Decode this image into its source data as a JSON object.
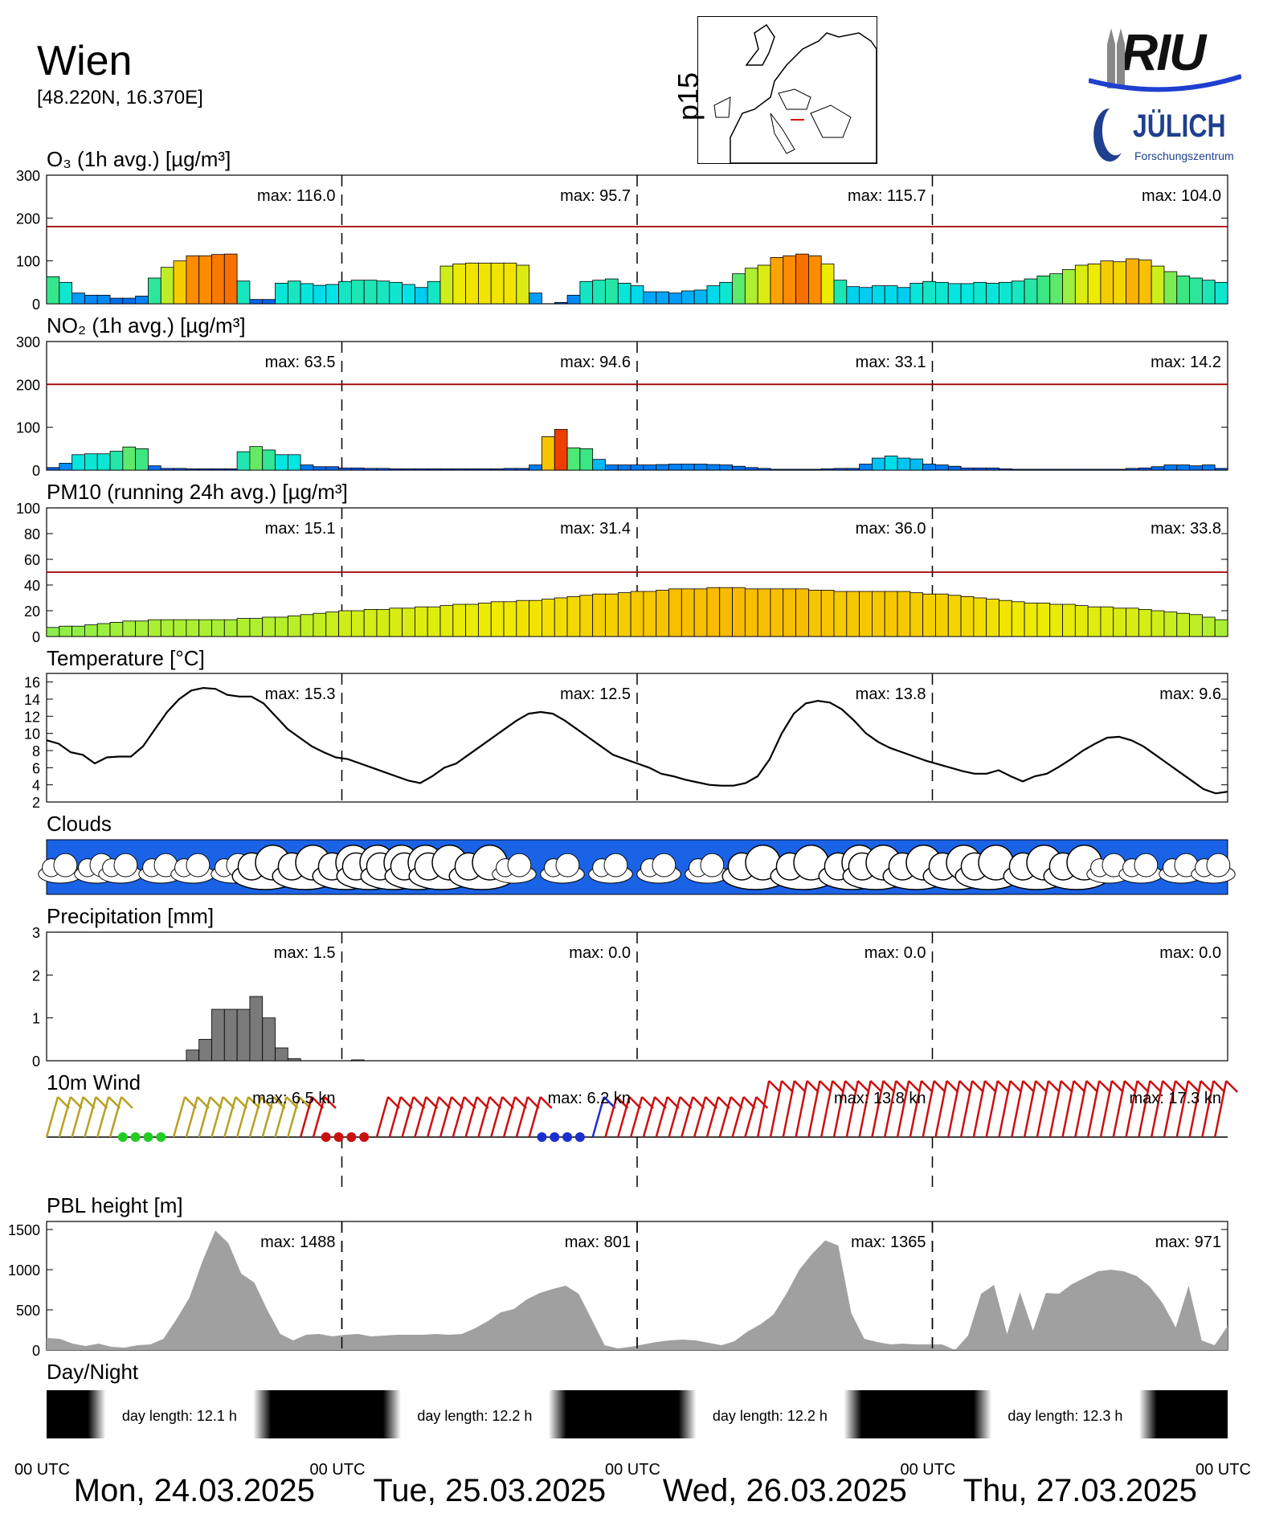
{
  "header": {
    "location": "Wien",
    "coords": "[48.220N, 16.370E]",
    "map_label": "p15",
    "logo_text_1": "RIU",
    "logo_text_2": "JÜLICH",
    "logo_text_3": "Forschungszentrum"
  },
  "panels": {
    "o3": "O₃ (1h avg.) [µg/m³]",
    "no2": "NO₂ (1h avg.) [µg/m³]",
    "pm10": "PM10 (running 24h avg.) [µg/m³]",
    "temp": "Temperature [°C]",
    "clouds": "Clouds",
    "precip": "Precipitation [mm]",
    "wind": "10m Wind",
    "pbl": "PBL height [m]",
    "daynight": "Day/Night"
  },
  "footer": {
    "utc": "00 UTC",
    "days": [
      "Mon, 24.03.2025",
      "Tue, 25.03.2025",
      "Wed, 26.03.2025",
      "Thu, 27.03.2025"
    ]
  },
  "chart_data": [
    {
      "type": "bar",
      "panel": "o3",
      "ylim": [
        0,
        300
      ],
      "yticks": [
        0,
        100,
        200,
        300
      ],
      "threshold": 180,
      "max_labels": [
        "max: 116.0",
        "max:  95.7",
        "max: 115.7",
        "max: 104.0"
      ],
      "values": [
        63,
        50,
        25,
        20,
        20,
        13,
        13,
        18,
        60,
        85,
        100,
        112,
        112,
        115,
        116,
        53,
        10,
        10,
        48,
        53,
        47,
        43,
        45,
        52,
        55,
        55,
        53,
        50,
        45,
        38,
        52,
        88,
        93,
        95,
        95,
        95,
        95,
        90,
        25,
        0,
        3,
        20,
        52,
        55,
        58,
        48,
        42,
        28,
        28,
        25,
        30,
        32,
        42,
        50,
        70,
        83,
        90,
        108,
        112,
        116,
        112,
        93,
        55,
        40,
        38,
        42,
        42,
        38,
        48,
        52,
        50,
        47,
        47,
        50,
        48,
        50,
        53,
        58,
        65,
        70,
        80,
        90,
        93,
        100,
        98,
        105,
        102,
        88,
        75,
        65,
        60,
        55,
        50
      ]
    },
    {
      "type": "bar",
      "panel": "no2",
      "ylim": [
        0,
        300
      ],
      "yticks": [
        0,
        100,
        200,
        300
      ],
      "threshold": 200,
      "max_labels": [
        "max:  63.5",
        "max:  94.6",
        "max:  33.1",
        "max:  14.2"
      ],
      "values": [
        6,
        16,
        36,
        38,
        38,
        44,
        54,
        50,
        10,
        4,
        4,
        3,
        3,
        3,
        3,
        43,
        55,
        47,
        36,
        36,
        12,
        8,
        8,
        5,
        5,
        4,
        4,
        3,
        3,
        3,
        3,
        3,
        3,
        3,
        3,
        3,
        4,
        4,
        12,
        78,
        95,
        52,
        50,
        25,
        12,
        12,
        12,
        12,
        13,
        14,
        14,
        14,
        13,
        12,
        9,
        6,
        4,
        2,
        2,
        2,
        2,
        3,
        4,
        4,
        14,
        28,
        33,
        28,
        26,
        14,
        12,
        9,
        5,
        5,
        5,
        3,
        2,
        2,
        2,
        2,
        2,
        2,
        2,
        2,
        2,
        4,
        5,
        8,
        12,
        12,
        10,
        12,
        4
      ]
    },
    {
      "type": "bar",
      "panel": "pm10",
      "ylim": [
        0,
        100
      ],
      "yticks": [
        0,
        20,
        40,
        60,
        80,
        100
      ],
      "threshold": 50,
      "max_labels": [
        "max:  15.1",
        "max:  31.4",
        "max:  36.0",
        "max:  33.8"
      ],
      "values": [
        7,
        8,
        8,
        9,
        10,
        11,
        12,
        12,
        13,
        13,
        13,
        13,
        13,
        13,
        13,
        14,
        14,
        15,
        15,
        16,
        17,
        18,
        19,
        20,
        20,
        21,
        21,
        22,
        22,
        23,
        23,
        24,
        25,
        25,
        26,
        27,
        27,
        28,
        28,
        29,
        30,
        31,
        32,
        33,
        33,
        34,
        35,
        35,
        36,
        37,
        37,
        37,
        38,
        38,
        38,
        37,
        37,
        37,
        37,
        37,
        36,
        36,
        35,
        35,
        35,
        35,
        35,
        35,
        34,
        33,
        33,
        32,
        31,
        30,
        29,
        28,
        27,
        26,
        26,
        25,
        25,
        24,
        23,
        23,
        22,
        22,
        21,
        20,
        19,
        18,
        17,
        15,
        13
      ]
    },
    {
      "type": "line",
      "panel": "temp",
      "ylim": [
        2,
        17
      ],
      "yticks": [
        2,
        4,
        6,
        8,
        10,
        12,
        14,
        16
      ],
      "max_labels": [
        "max:  15.3",
        "max:  12.5",
        "max:  13.8",
        "max:   9.6"
      ],
      "values": [
        9.2,
        8.8,
        7.8,
        7.5,
        6.5,
        7.2,
        7.3,
        7.3,
        8.5,
        10.5,
        12.5,
        14,
        15,
        15.3,
        15.2,
        14.5,
        14.3,
        14.3,
        13.5,
        12,
        10.5,
        9.5,
        8.5,
        7.8,
        7.2,
        7,
        6.5,
        6,
        5.5,
        5,
        4.5,
        4.2,
        5,
        6,
        6.5,
        7.5,
        8.5,
        9.5,
        10.5,
        11.5,
        12.3,
        12.5,
        12.3,
        11.5,
        10.5,
        9.5,
        8.5,
        7.5,
        7,
        6.5,
        6,
        5.3,
        5,
        4.6,
        4.3,
        4,
        3.9,
        3.9,
        4.2,
        5,
        7,
        10,
        12.3,
        13.5,
        13.8,
        13.6,
        12.8,
        11.5,
        10,
        9,
        8.3,
        7.8,
        7.3,
        6.8,
        6.4,
        6,
        5.6,
        5.3,
        5.3,
        5.7,
        5.0,
        4.4,
        5,
        5.3,
        6.1,
        7,
        8,
        8.8,
        9.5,
        9.6,
        9.2,
        8.5,
        7.5,
        6.5,
        5.5,
        4.5,
        3.5,
        3.0,
        3.2
      ]
    },
    {
      "type": "bar",
      "panel": "precip",
      "ylim": [
        0,
        3
      ],
      "yticks": [
        0,
        1,
        2,
        3
      ],
      "max_labels": [
        "max:   1.5",
        "max:   0.0",
        "max:   0.0",
        "max:   0.0"
      ],
      "values": [
        0,
        0,
        0,
        0,
        0,
        0,
        0,
        0,
        0,
        0,
        0,
        0.25,
        0.5,
        1.2,
        1.2,
        1.2,
        1.5,
        1.0,
        0.3,
        0.05,
        0,
        0,
        0,
        0,
        0.02
      ]
    },
    {
      "type": "area",
      "panel": "pbl",
      "ylim": [
        0,
        1600
      ],
      "yticks": [
        0,
        500,
        1000,
        1500
      ],
      "max_labels": [
        "max:  1488",
        "max:   801",
        "max:  1365",
        "max:   971"
      ],
      "values": [
        150,
        140,
        80,
        50,
        80,
        40,
        30,
        60,
        70,
        140,
        380,
        650,
        1100,
        1488,
        1330,
        950,
        840,
        500,
        200,
        120,
        190,
        200,
        170,
        190,
        200,
        170,
        180,
        190,
        190,
        190,
        200,
        190,
        200,
        270,
        360,
        470,
        510,
        630,
        710,
        760,
        800,
        700,
        380,
        60,
        20,
        40,
        70,
        100,
        120,
        130,
        120,
        90,
        60,
        110,
        230,
        320,
        440,
        700,
        1000,
        1200,
        1365,
        1300,
        460,
        140,
        100,
        70,
        80,
        70,
        70,
        70,
        0,
        180,
        700,
        810,
        200,
        720,
        240,
        710,
        700,
        820,
        900,
        980,
        1000,
        980,
        920,
        790,
        580,
        280,
        800,
        120,
        60,
        300
      ]
    },
    {
      "type": "table",
      "panel": "daynight",
      "labels": [
        "day length:  12.1 h",
        "day length:  12.2 h",
        "day length:  12.2 h",
        "day length:  12.3 h"
      ]
    },
    {
      "type": "scatter",
      "panel": "wind",
      "max_labels": [
        "max:   6.5 kn",
        "max:   6.2 kn",
        "max:  13.8 kn",
        "max:  17.3 kn"
      ]
    }
  ]
}
